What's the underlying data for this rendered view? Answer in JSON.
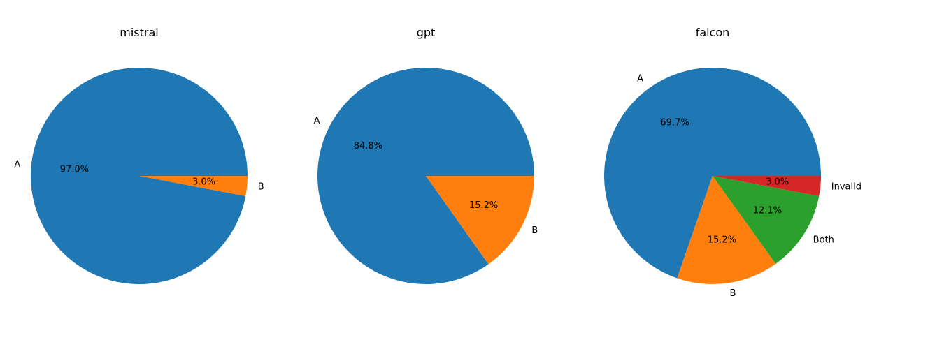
{
  "chart_data": [
    {
      "type": "pie",
      "title": "mistral",
      "slices": [
        {
          "label": "A",
          "value": 97.0,
          "pct_label": "97.0%",
          "color": "#1f77b4"
        },
        {
          "label": "B",
          "value": 3.0,
          "pct_label": "3.0%",
          "color": "#ff7f0e"
        }
      ]
    },
    {
      "type": "pie",
      "title": "gpt",
      "slices": [
        {
          "label": "A",
          "value": 84.8,
          "pct_label": "84.8%",
          "color": "#1f77b4"
        },
        {
          "label": "B",
          "value": 15.2,
          "pct_label": "15.2%",
          "color": "#ff7f0e"
        }
      ]
    },
    {
      "type": "pie",
      "title": "falcon",
      "slices": [
        {
          "label": "A",
          "value": 69.7,
          "pct_label": "69.7%",
          "color": "#1f77b4"
        },
        {
          "label": "B",
          "value": 15.2,
          "pct_label": "15.2%",
          "color": "#ff7f0e"
        },
        {
          "label": "Both",
          "value": 12.1,
          "pct_label": "12.1%",
          "color": "#2ca02c"
        },
        {
          "label": "Invalid",
          "value": 3.0,
          "pct_label": "3.0%",
          "color": "#d62728"
        }
      ]
    }
  ]
}
